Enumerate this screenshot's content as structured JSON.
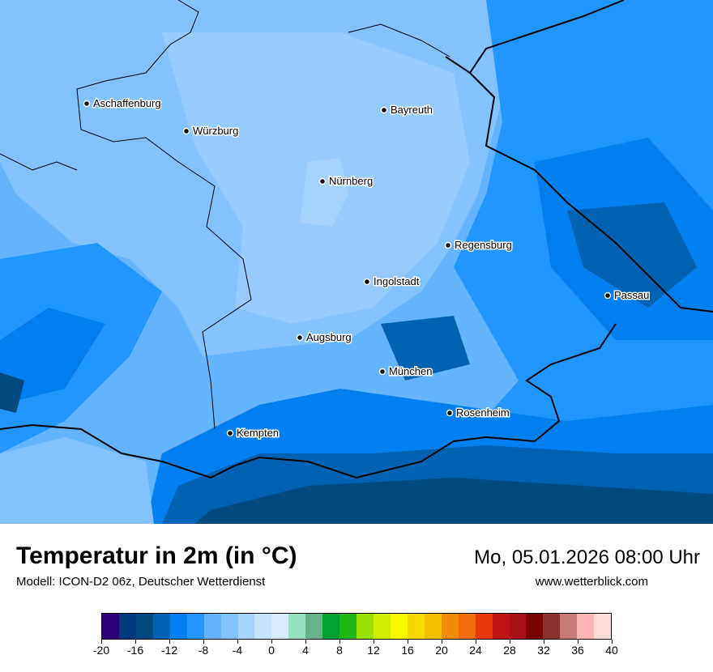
{
  "header": {
    "title": "Temperatur in 2m (in °C)",
    "model": "Modell: ICON-D2 06z, Deutscher Wetterdienst",
    "datetime": "Mo, 05.01.2026 08:00 Uhr",
    "website": "www.wetterblick.com"
  },
  "map": {
    "cities": [
      {
        "name": "Aschaffenburg"
      },
      {
        "name": "Würzburg"
      },
      {
        "name": "Bayreuth"
      },
      {
        "name": "Nürnberg"
      },
      {
        "name": "Regensburg"
      },
      {
        "name": "Ingolstadt"
      },
      {
        "name": "Passau"
      },
      {
        "name": "Augsburg"
      },
      {
        "name": "München"
      },
      {
        "name": "Rosenheim"
      },
      {
        "name": "Kempten"
      }
    ]
  },
  "colorbar": {
    "min": -20,
    "max": 40,
    "step": 2,
    "tick_labels": [
      "-20",
      "-16",
      "-12",
      "-8",
      "-4",
      "0",
      "4",
      "8",
      "12",
      "16",
      "20",
      "24",
      "28",
      "32",
      "36",
      "40"
    ],
    "colors": [
      "#2e0078",
      "#003a7e",
      "#004a80",
      "#0062b0",
      "#0080f0",
      "#2196ff",
      "#64b4ff",
      "#82c3ff",
      "#a5d2ff",
      "#c5e2ff",
      "#d9eaff",
      "#96dfc0",
      "#65b28c",
      "#05a030",
      "#20b812",
      "#98e000",
      "#d0f000",
      "#f5fa00",
      "#f5d800",
      "#f5be00",
      "#f28a0a",
      "#f26e0a",
      "#e8380a",
      "#be1414",
      "#aa1018",
      "#780000",
      "#8c3232",
      "#c87878",
      "#ffb4b4",
      "#ffdcdc"
    ]
  }
}
